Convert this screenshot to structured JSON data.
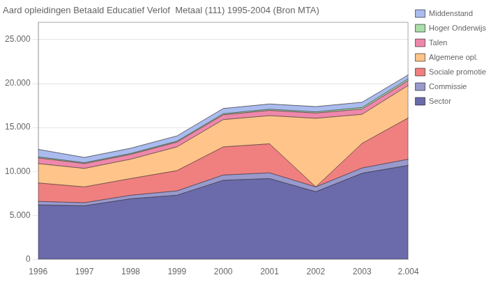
{
  "chart_data": {
    "type": "area",
    "title": "Aard opleidingen Betaald Educatief Verlof  Metaal (111) 1995-2004 (Bron MTA)",
    "categories": [
      "1996",
      "1997",
      "1998",
      "1999",
      "2000",
      "2001",
      "2002",
      "2003",
      "2.004"
    ],
    "series": [
      {
        "name": "Sector",
        "color": "#6b6bab",
        "values": [
          6200,
          6100,
          6900,
          7300,
          9000,
          9200,
          7700,
          9800,
          10700
        ]
      },
      {
        "name": "Commissie",
        "color": "#9999cc",
        "values": [
          400,
          350,
          400,
          500,
          600,
          650,
          550,
          600,
          700
        ]
      },
      {
        "name": "Sociale promotie",
        "color": "#f08080",
        "values": [
          2100,
          1800,
          1900,
          2300,
          3200,
          3300,
          0,
          2800,
          4700
        ]
      },
      {
        "name": "Algemene opl.",
        "color": "#ffc48a",
        "values": [
          2200,
          2100,
          2200,
          2700,
          3100,
          3200,
          7800,
          3300,
          3700
        ]
      },
      {
        "name": "Talen",
        "color": "#ee88aa",
        "values": [
          650,
          550,
          550,
          550,
          550,
          600,
          600,
          600,
          550
        ]
      },
      {
        "name": "Hoger Onderwijs",
        "color": "#aaddaa",
        "values": [
          120,
          100,
          100,
          100,
          120,
          130,
          130,
          180,
          200
        ]
      },
      {
        "name": "Middenstand",
        "color": "#aabbee",
        "values": [
          850,
          600,
          600,
          600,
          600,
          600,
          600,
          600,
          450
        ]
      }
    ],
    "stacked": true,
    "ylim": [
      0,
      27000
    ],
    "yticks": [
      0,
      {
        "value": 5000,
        "label": "5.000"
      },
      {
        "value": 10000,
        "label": "10.000"
      },
      {
        "value": 15000,
        "label": "15.000"
      },
      {
        "value": 20000,
        "label": "20.000"
      },
      {
        "value": 25000,
        "label": "25.000"
      }
    ],
    "grid": true,
    "legend": "right"
  }
}
